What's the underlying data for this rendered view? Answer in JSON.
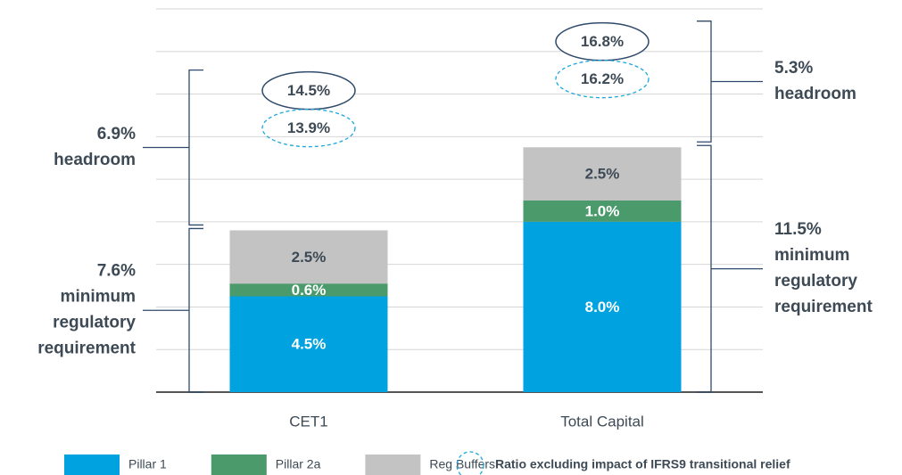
{
  "chart_data": {
    "type": "bar",
    "stacked": true,
    "categories": [
      "CET1",
      "Total Capital"
    ],
    "series": [
      {
        "name": "Pillar 1",
        "color": "#00a3e0",
        "values": [
          4.5,
          8.0
        ],
        "value_labels": [
          "4.5%",
          "8.0%"
        ]
      },
      {
        "name": "Pillar 2a",
        "color": "#4b9a6c",
        "values": [
          0.6,
          1.0
        ],
        "value_labels": [
          "0.6%",
          "1.0%"
        ]
      },
      {
        "name": "Reg Buffers",
        "color": "#c3c3c3",
        "values": [
          2.5,
          2.5
        ],
        "value_labels": [
          "2.5%",
          "2.5%"
        ]
      }
    ],
    "ratios": {
      "values": [
        14.5,
        16.8
      ],
      "value_labels": [
        "14.5%",
        "16.8%"
      ],
      "color": "#2f4a6b"
    },
    "ratios_excluding": {
      "name": "Ratio excluding impact of IFRS9 transitional relief",
      "values": [
        13.9,
        16.2
      ],
      "value_labels": [
        "13.9%",
        "16.2%"
      ],
      "color": "#1aa7dd"
    },
    "annotations": [
      {
        "headroom": [
          "6.9%",
          "headroom"
        ],
        "minimum": [
          "7.6%",
          "minimum",
          "regulatory",
          "requirement"
        ]
      },
      {
        "headroom": [
          "5.3%",
          "headroom"
        ],
        "minimum": [
          "11.5%",
          "minimum",
          "regulatory",
          "requirement"
        ]
      }
    ],
    "ylim": [
      0,
      18
    ],
    "yticks": [
      0,
      2,
      4,
      6,
      8,
      10,
      12,
      14,
      16,
      18
    ],
    "grid": true
  }
}
